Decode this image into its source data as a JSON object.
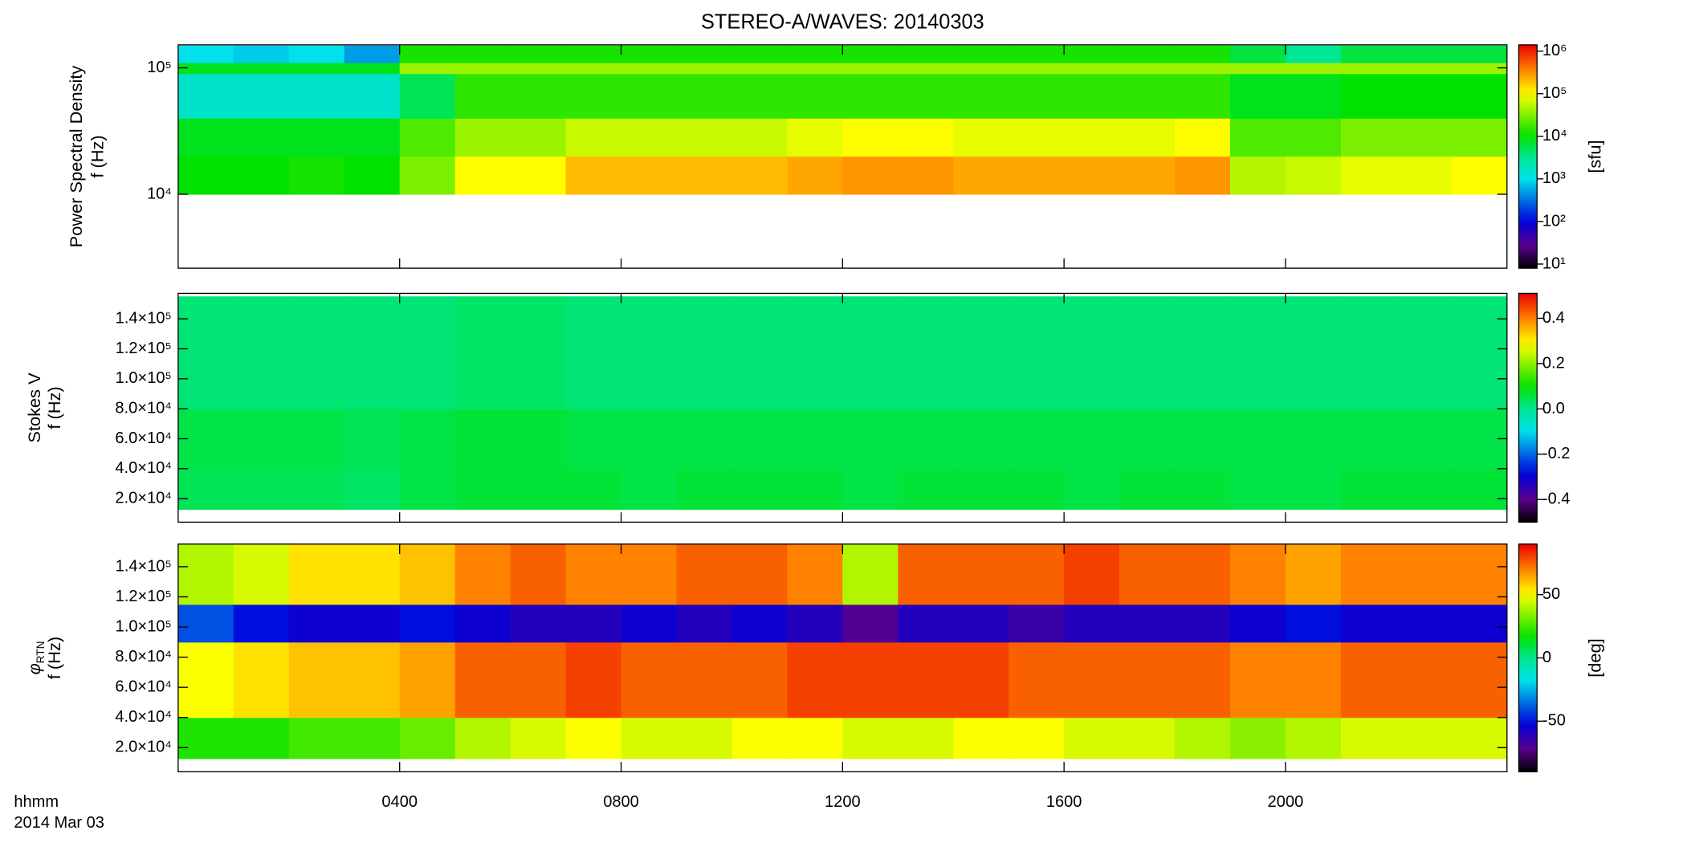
{
  "chart_data": [
    {
      "type": "heatmap",
      "title": "STEREO-A/WAVES: 20140303",
      "ylabel": [
        "Power Spectral Density",
        "f (Hz)"
      ],
      "yscale": "log",
      "ylim": [
        2600,
        152000
      ],
      "yticks": [
        {
          "value": 10000,
          "label": "10⁴"
        },
        {
          "value": 100000,
          "label": "10⁵"
        }
      ],
      "xlim": [
        0,
        24
      ],
      "xbins": [
        0,
        1,
        2,
        3,
        4,
        5,
        6,
        7,
        8,
        9,
        10,
        11,
        12,
        13,
        14,
        15,
        16,
        17,
        18,
        19,
        20,
        21,
        22,
        23,
        24
      ],
      "ybins": [
        10000,
        20000,
        40000,
        90000,
        110000,
        150000
      ],
      "z": [
        [
          10000,
          10000,
          12000,
          10000,
          30000,
          100000,
          100000,
          200000,
          200000,
          200000,
          200000,
          250000,
          300000,
          300000,
          250000,
          250000,
          250000,
          250000,
          300000,
          50000,
          60000,
          80000,
          80000,
          100000
        ],
        [
          8000,
          8000,
          8000,
          8000,
          20000,
          40000,
          40000,
          60000,
          60000,
          60000,
          60000,
          80000,
          100000,
          100000,
          80000,
          80000,
          80000,
          80000,
          100000,
          20000,
          20000,
          30000,
          30000,
          30000
        ],
        [
          1500,
          1500,
          1500,
          1500,
          5000,
          15000,
          15000,
          15000,
          15000,
          15000,
          15000,
          15000,
          15000,
          15000,
          15000,
          15000,
          15000,
          15000,
          15000,
          8000,
          8000,
          10000,
          10000,
          10000
        ],
        [
          8000,
          8000,
          8000,
          8000,
          40000,
          40000,
          40000,
          40000,
          40000,
          40000,
          40000,
          40000,
          40000,
          40000,
          40000,
          40000,
          40000,
          40000,
          40000,
          40000,
          40000,
          40000,
          40000,
          40000
        ],
        [
          1000,
          800,
          1000,
          500,
          12000,
          12000,
          12000,
          12000,
          12000,
          12000,
          12000,
          12000,
          12000,
          12000,
          12000,
          12000,
          12000,
          12000,
          12000,
          6000,
          3000,
          6000,
          6000,
          6000
        ]
      ],
      "zscale": "log",
      "zlim": [
        8,
        1400000
      ],
      "colormap": "rainbow",
      "zticks": [
        {
          "value": 1000000,
          "label": "10⁶"
        },
        {
          "value": 100000,
          "label": "10⁵"
        },
        {
          "value": 10000,
          "label": "10⁴"
        },
        {
          "value": 1000,
          "label": "10³"
        },
        {
          "value": 100,
          "label": "10²"
        },
        {
          "value": 10,
          "label": "10¹"
        }
      ],
      "zlabel": "[sfu]"
    },
    {
      "type": "heatmap",
      "ylabel": [
        "Stokes V",
        "f (Hz)"
      ],
      "yscale": "linear",
      "ylim": [
        4300,
        157000
      ],
      "yticks": [
        {
          "value": 20000,
          "label": "2.0×10⁴"
        },
        {
          "value": 40000,
          "label": "4.0×10⁴"
        },
        {
          "value": 60000,
          "label": "6.0×10⁴"
        },
        {
          "value": 80000,
          "label": "8.0×10⁴"
        },
        {
          "value": 100000,
          "label": "1.0×10⁵"
        },
        {
          "value": 120000,
          "label": "1.2×10⁵"
        },
        {
          "value": 140000,
          "label": "1.4×10⁵"
        }
      ],
      "xlim": [
        0,
        24
      ],
      "xbins": [
        0,
        1,
        2,
        3,
        4,
        5,
        6,
        7,
        8,
        9,
        10,
        11,
        12,
        13,
        14,
        15,
        16,
        17,
        18,
        19,
        20,
        21,
        22,
        23,
        24
      ],
      "ybins": [
        12900,
        40000,
        80000,
        155000
      ],
      "z": [
        [
          0.04,
          0.04,
          0.04,
          0.03,
          0.05,
          0.06,
          0.06,
          0.06,
          0.05,
          0.06,
          0.06,
          0.06,
          0.05,
          0.06,
          0.06,
          0.06,
          0.05,
          0.06,
          0.06,
          0.05,
          0.05,
          0.06,
          0.06,
          0.06
        ],
        [
          0.05,
          0.05,
          0.05,
          0.04,
          0.05,
          0.06,
          0.06,
          0.05,
          0.05,
          0.05,
          0.05,
          0.05,
          0.05,
          0.05,
          0.05,
          0.05,
          0.05,
          0.05,
          0.05,
          0.05,
          0.05,
          0.05,
          0.05,
          0.05
        ],
        [
          0.02,
          0.02,
          0.02,
          0.02,
          0.02,
          0.03,
          0.03,
          0.02,
          0.02,
          0.02,
          0.02,
          0.02,
          0.02,
          0.02,
          0.02,
          0.02,
          0.02,
          0.02,
          0.02,
          0.02,
          0.02,
          0.02,
          0.02,
          0.02
        ]
      ],
      "zscale": "linear",
      "zlim": [
        -0.5,
        0.51
      ],
      "colormap": "rainbow",
      "zticks": [
        0.4,
        0.2,
        {
          "value": 0,
          "label": "0.0"
        },
        -0.2,
        -0.4
      ]
    },
    {
      "type": "heatmap",
      "ylabel": [
        {
          "text": "φ",
          "sub": "RTN"
        },
        "f (Hz)"
      ],
      "yscale": "linear",
      "ylim": [
        4000,
        155000
      ],
      "yticks": [
        {
          "value": 20000,
          "label": "2.0×10⁴"
        },
        {
          "value": 40000,
          "label": "4.0×10⁴"
        },
        {
          "value": 60000,
          "label": "6.0×10⁴"
        },
        {
          "value": 80000,
          "label": "8.0×10⁴"
        },
        {
          "value": 100000,
          "label": "1.0×10⁵"
        },
        {
          "value": 120000,
          "label": "1.2×10⁵"
        },
        {
          "value": 140000,
          "label": "1.4×10⁵"
        }
      ],
      "xlim": [
        0,
        24
      ],
      "xticks": [
        {
          "value": 4,
          "label": "0400"
        },
        {
          "value": 8,
          "label": "0800"
        },
        {
          "value": 12,
          "label": "1200"
        },
        {
          "value": 16,
          "label": "1600"
        },
        {
          "value": 20,
          "label": "2000"
        }
      ],
      "xlabel": [
        "hhmm",
        "2014 Mar 03"
      ],
      "xbins": [
        0,
        1,
        2,
        3,
        4,
        5,
        6,
        7,
        8,
        9,
        10,
        11,
        12,
        13,
        14,
        15,
        16,
        17,
        18,
        19,
        20,
        21,
        22,
        23,
        24
      ],
      "ybins": [
        12700,
        40000,
        90000,
        115000,
        155000
      ],
      "z": [
        [
          20,
          20,
          25,
          25,
          30,
          40,
          45,
          50,
          45,
          45,
          50,
          50,
          45,
          45,
          50,
          50,
          45,
          45,
          40,
          35,
          40,
          45,
          45,
          45
        ],
        [
          50,
          55,
          60,
          60,
          65,
          75,
          75,
          80,
          75,
          75,
          75,
          80,
          80,
          80,
          80,
          75,
          75,
          75,
          75,
          70,
          70,
          75,
          75,
          75
        ],
        [
          -40,
          -50,
          -55,
          -55,
          -50,
          -55,
          -60,
          -60,
          -55,
          -60,
          -55,
          -60,
          -70,
          -60,
          -60,
          -65,
          -60,
          -60,
          -60,
          -55,
          -50,
          -55,
          -55,
          -55
        ],
        [
          40,
          45,
          55,
          55,
          60,
          70,
          75,
          70,
          70,
          75,
          75,
          70,
          40,
          75,
          75,
          75,
          80,
          75,
          75,
          70,
          65,
          70,
          70,
          70
        ]
      ],
      "zscale": "linear",
      "zlim": [
        -90,
        90
      ],
      "colormap": "rainbow",
      "zticks": [
        50,
        0,
        -50
      ],
      "zlabel": "[deg]"
    }
  ]
}
